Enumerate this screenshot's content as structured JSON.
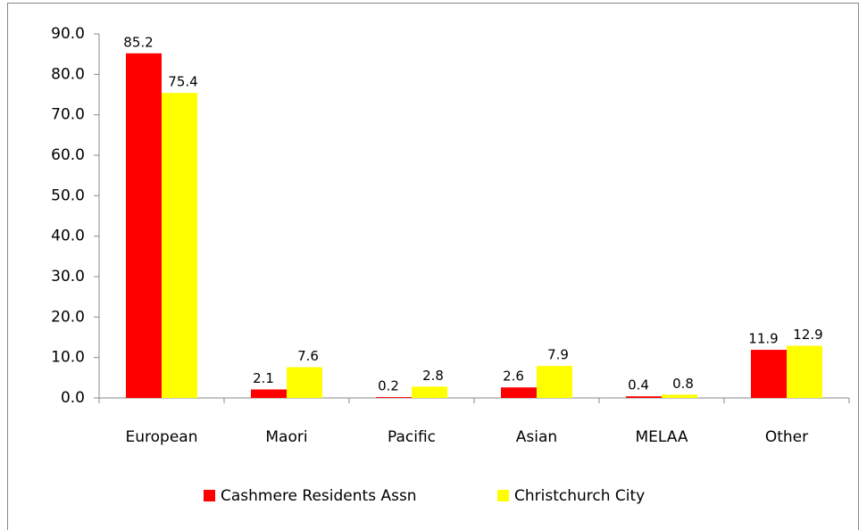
{
  "chart_data": {
    "type": "bar",
    "categories": [
      "European",
      "Maori",
      "Pacific",
      "Asian",
      "MELAA",
      "Other"
    ],
    "series": [
      {
        "name": "Cashmere Residents Assn",
        "color": "#ff0000",
        "values": [
          85.2,
          2.1,
          0.2,
          2.6,
          0.4,
          11.9
        ]
      },
      {
        "name": "Christchurch City",
        "color": "#ffff00",
        "values": [
          75.4,
          7.6,
          2.8,
          7.9,
          0.8,
          12.9
        ]
      }
    ],
    "ylim": [
      0,
      90
    ],
    "yticks": [
      {
        "value": 0,
        "label": "0.0"
      },
      {
        "value": 10,
        "label": "10.0"
      },
      {
        "value": 20,
        "label": "20.0"
      },
      {
        "value": 30,
        "label": "30.0"
      },
      {
        "value": 40,
        "label": "40.0"
      },
      {
        "value": 50,
        "label": "50.0"
      },
      {
        "value": 60,
        "label": "60.0"
      },
      {
        "value": 70,
        "label": "70.0"
      },
      {
        "value": 80,
        "label": "80.0"
      },
      {
        "value": 90,
        "label": "90.0"
      }
    ],
    "grid": false,
    "legend": "bottom"
  }
}
